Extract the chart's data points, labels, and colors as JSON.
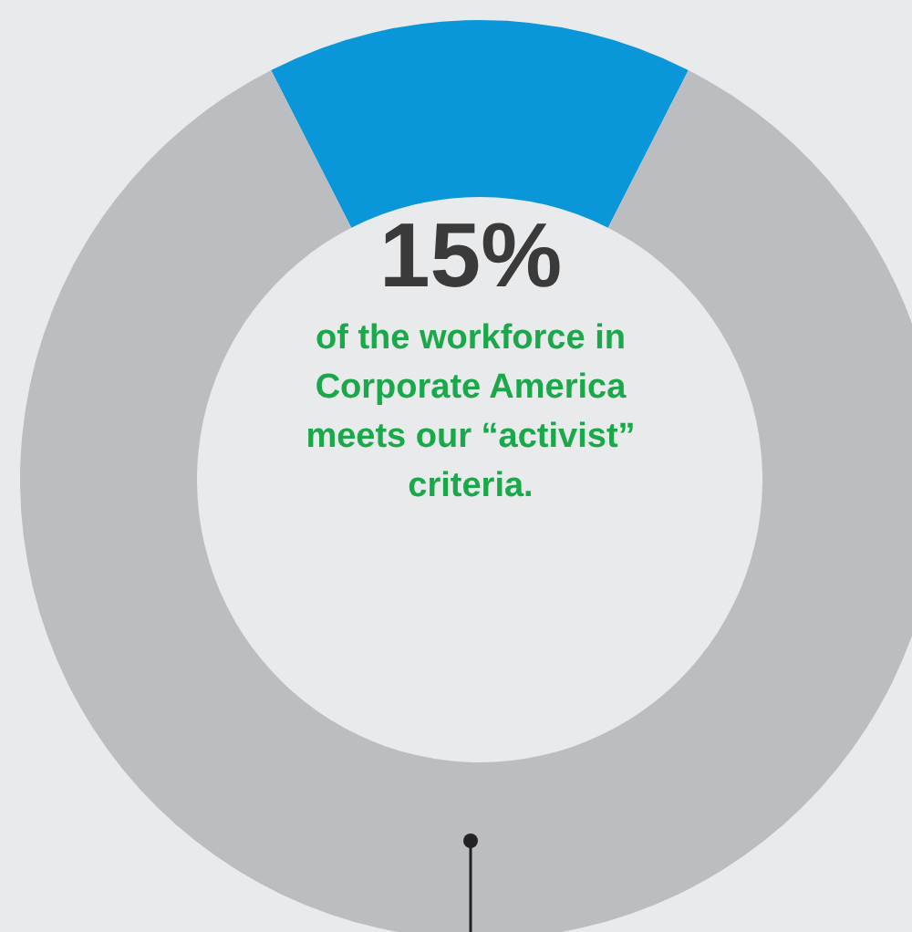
{
  "chart_data": {
    "type": "donut",
    "categories": [
      null,
      null
    ],
    "values": [
      15,
      85
    ],
    "colors": [
      "#0a97d9",
      "#bcbdc0"
    ],
    "value_labels": [
      "15%",
      null
    ],
    "annotations": [
      "of the workforce in Corporate America meets our “activist” criteria."
    ]
  }
}
